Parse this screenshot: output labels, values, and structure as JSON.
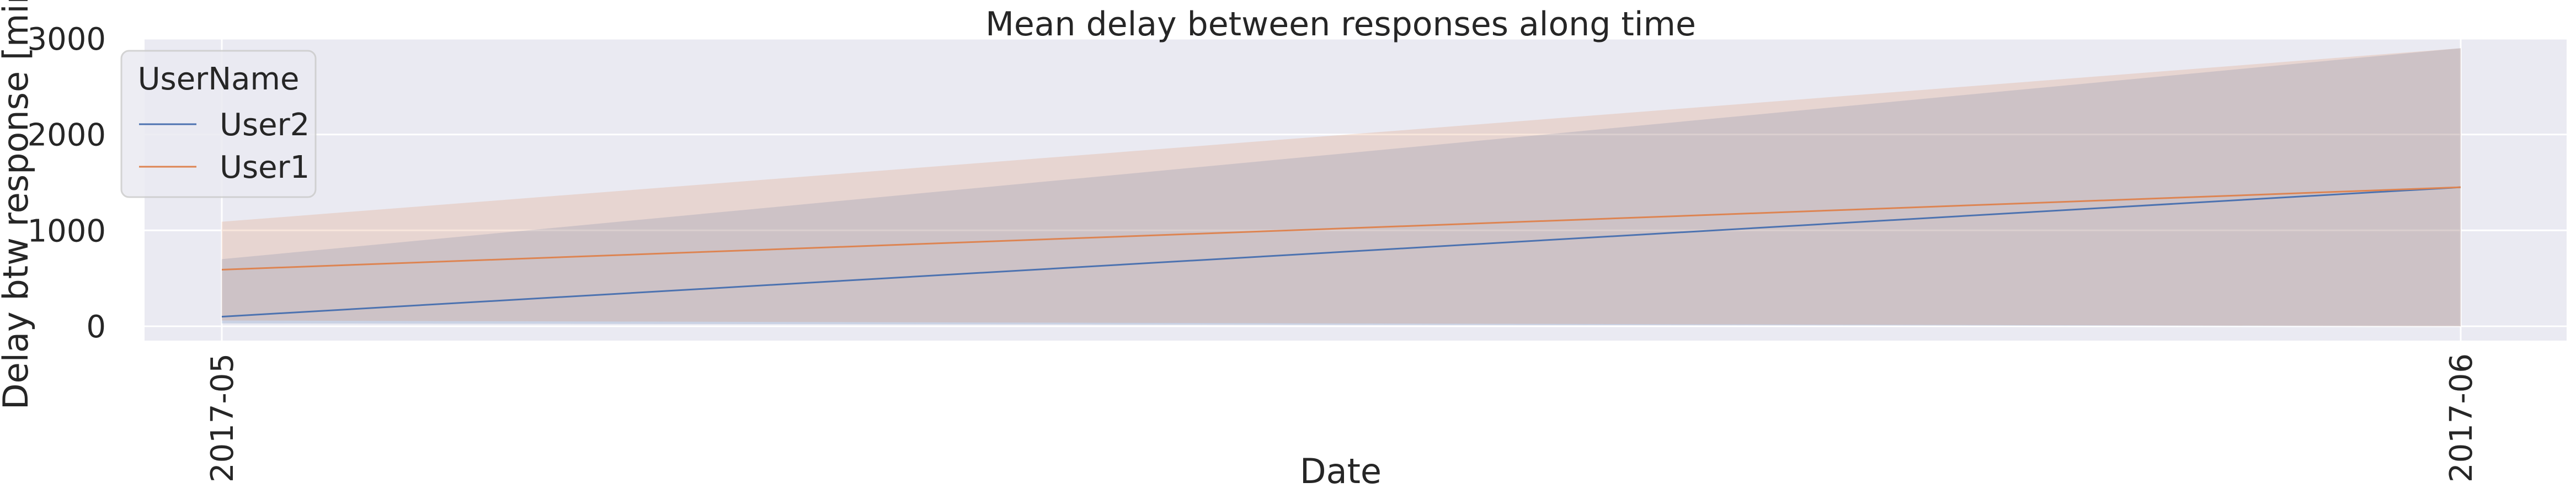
{
  "chart_data": {
    "type": "line",
    "title": "Mean delay between responses along time",
    "xlabel": "Date",
    "ylabel": "Delay btw response [min]",
    "x": [
      "2017-05",
      "2017-06"
    ],
    "ylim": [
      -150,
      3000
    ],
    "yticks": [
      0,
      1000,
      2000,
      3000
    ],
    "grid": true,
    "legend": {
      "title": "UserName",
      "placement": "top-left"
    },
    "series": [
      {
        "name": "User2",
        "color": "#4c72b0",
        "values": [
          100,
          1450
        ],
        "band_low": [
          30,
          0
        ],
        "band_high": [
          700,
          2900
        ]
      },
      {
        "name": "User1",
        "color": "#dd8452",
        "values": [
          590,
          1450
        ],
        "band_low": [
          60,
          0
        ],
        "band_high": [
          1090,
          2900
        ]
      }
    ]
  }
}
